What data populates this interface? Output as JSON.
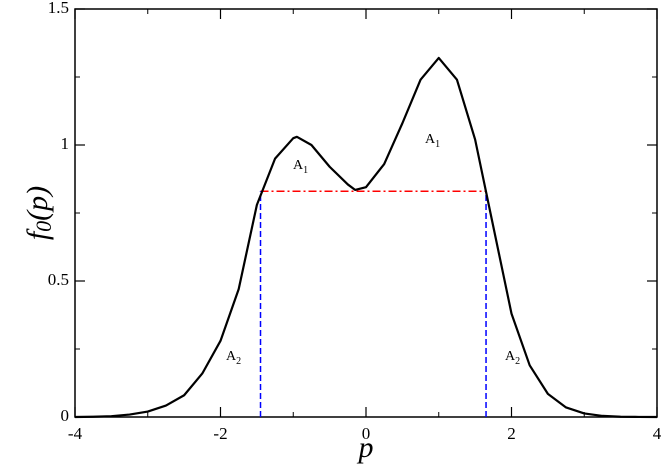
{
  "chart_data": {
    "type": "line",
    "x": [
      -4,
      -3.75,
      -3.5,
      -3.25,
      -3,
      -2.75,
      -2.5,
      -2.25,
      -2,
      -1.75,
      -1.5,
      -1.25,
      -1,
      -0.95,
      -0.75,
      -0.5,
      -0.25,
      -0.15,
      0,
      0.25,
      0.5,
      0.75,
      1,
      1.25,
      1.5,
      1.75,
      2,
      2.25,
      2.5,
      2.75,
      3,
      3.25,
      3.5,
      3.75,
      4
    ],
    "series": [
      {
        "color": "#000000",
        "values": [
          0,
          0.001,
          0.003,
          0.009,
          0.02,
          0.042,
          0.08,
          0.16,
          0.28,
          0.47,
          0.78,
          0.95,
          1.025,
          1.03,
          1.0,
          0.92,
          0.855,
          0.835,
          0.845,
          0.93,
          1.08,
          1.24,
          1.32,
          1.24,
          1.02,
          0.7,
          0.38,
          0.19,
          0.085,
          0.035,
          0.013,
          0.004,
          0.001,
          0.0003,
          0
        ]
      }
    ],
    "level": 0.83,
    "level_color": "#ff0000",
    "crossings": [
      -1.45,
      1.65
    ],
    "crossing_color": "#0000ff",
    "annotations": [
      {
        "text": "A",
        "sub": "1"
      },
      {
        "text": "A",
        "sub": "1"
      },
      {
        "text": "A",
        "sub": "2"
      },
      {
        "text": "A",
        "sub": "2"
      }
    ],
    "xlabel": "p",
    "ylabel": {
      "main": "f",
      "sub": "0",
      "arg": "(p)"
    },
    "xlim": [
      -4,
      4
    ],
    "xticks": [
      -4,
      -2,
      0,
      2,
      4
    ],
    "xminor": [
      -3,
      -1,
      1,
      3
    ],
    "ylim": [
      0,
      1.5
    ],
    "yticks": [
      0,
      0.5,
      1,
      1.5
    ],
    "yminor": [
      0.25,
      0.75,
      1.25
    ]
  }
}
